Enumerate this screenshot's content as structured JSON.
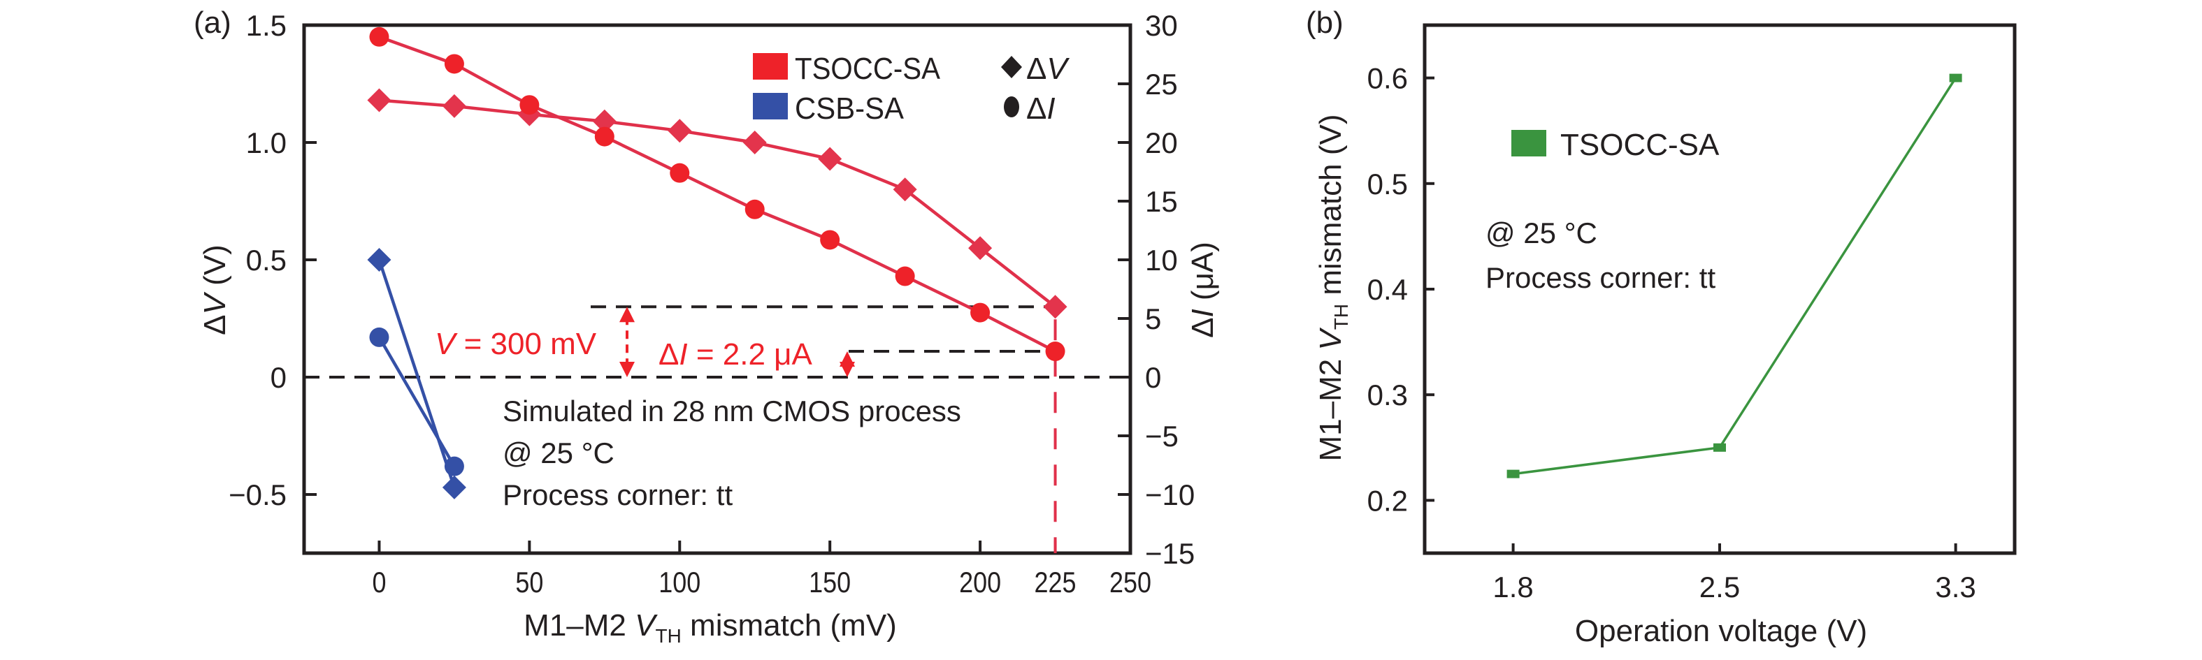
{
  "chart_data": [
    {
      "panel": "(a)",
      "type": "line",
      "xlabel": "M1–M2 V_TH mismatch (mV)",
      "xlabel_parts": {
        "pre": "M1–M2 ",
        "var": "V",
        "sub": "TH",
        "post": " mismatch (mV)"
      },
      "ylabel_left": "ΔV (V)",
      "ylabel_left_parts": {
        "delta": "Δ",
        "var": "V",
        "post": " (V)"
      },
      "ylabel_right": "ΔI (μA)",
      "ylabel_right_parts": {
        "delta": "Δ",
        "var": "I",
        "post": " (μA)"
      },
      "xlim": [
        -25,
        250
      ],
      "ylim_left": [
        -0.75,
        1.5
      ],
      "ylim_right": [
        -15,
        30
      ],
      "xticks": [
        0,
        50,
        100,
        150,
        200,
        225,
        250
      ],
      "xtick_labels": [
        "0",
        "50",
        "100",
        "150",
        "200",
        "225",
        "250"
      ],
      "yticks_left": [
        1.5,
        1.0,
        0.5,
        0,
        -0.5
      ],
      "yticks_left_labels": [
        "1.5",
        "1.0",
        "0.5",
        "0",
        "−0.5"
      ],
      "yticks_right": [
        30,
        25,
        20,
        15,
        10,
        5,
        0,
        -5,
        -10,
        -15
      ],
      "yticks_right_labels": [
        "30",
        "25",
        "20",
        "15",
        "10",
        "5",
        "0",
        "−5",
        "−10",
        "−15"
      ],
      "grid": false,
      "legend_position": "top-right",
      "legend": {
        "series": [
          {
            "label": "TSOCC-SA",
            "color": "#ee2229"
          },
          {
            "label": "CSB-SA",
            "color": "#3450a6"
          }
        ],
        "markers": [
          {
            "symbol": "diamond",
            "label": "ΔV",
            "delta": "Δ",
            "var": "V"
          },
          {
            "symbol": "circle",
            "label": "ΔI",
            "delta": "Δ",
            "var": "I"
          }
        ]
      },
      "series": [
        {
          "name": "TSOCC-SA ΔV",
          "axis": "left",
          "marker": "diamond",
          "color": "#e3344c",
          "x": [
            0,
            25,
            50,
            75,
            100,
            125,
            150,
            175,
            200,
            225
          ],
          "y": [
            1.18,
            1.155,
            1.12,
            1.09,
            1.05,
            1.0,
            0.93,
            0.8,
            0.55,
            0.3
          ]
        },
        {
          "name": "TSOCC-SA ΔI",
          "axis": "right",
          "marker": "circle",
          "color": "#ee2229",
          "x": [
            0,
            25,
            50,
            75,
            100,
            125,
            150,
            175,
            200,
            225
          ],
          "y": [
            29.0,
            26.7,
            23.2,
            20.5,
            17.4,
            14.3,
            11.7,
            8.6,
            5.5,
            2.2
          ]
        },
        {
          "name": "CSB-SA ΔV",
          "axis": "left",
          "marker": "diamond",
          "color": "#3450a6",
          "x": [
            0,
            25
          ],
          "y": [
            0.5,
            -0.47
          ]
        },
        {
          "name": "CSB-SA ΔI",
          "axis": "right",
          "marker": "circle",
          "color": "#3450a6",
          "x": [
            0,
            25
          ],
          "y": [
            3.4,
            -7.6
          ]
        }
      ],
      "reference_lines": {
        "zero": 0,
        "dv_level": 0.3,
        "di_level": 2.2,
        "vertical_x": 225
      },
      "annotations": {
        "dv": {
          "var": "V",
          "rest": " = 300 mV"
        },
        "di": {
          "delta": "Δ",
          "var": "I",
          "rest": " = 2.2 μA"
        },
        "notes": [
          "Simulated in 28 nm CMOS process",
          "@ 25 °C",
          "Process corner: tt"
        ]
      }
    },
    {
      "panel": "(b)",
      "type": "line",
      "xlabel": "Operation voltage (V)",
      "ylabel": "M1–M2 V_TH mismatch (V)",
      "ylabel_parts": {
        "pre": "M1–M2 ",
        "var": "V",
        "sub": "TH",
        "post": " mismatch (V)"
      },
      "xlim": [
        1.5,
        3.5
      ],
      "ylim": [
        0.15,
        0.65
      ],
      "xticks": [
        1.8,
        2.5,
        3.3
      ],
      "xtick_labels": [
        "1.8",
        "2.5",
        "3.3"
      ],
      "yticks": [
        0.6,
        0.5,
        0.4,
        0.3,
        0.2
      ],
      "ytick_labels": [
        "0.6",
        "0.5",
        "0.4",
        "0.3",
        "0.2"
      ],
      "grid": false,
      "legend_position": "top-left",
      "legend": [
        {
          "label": "TSOCC-SA",
          "color": "#3a943f"
        }
      ],
      "series": [
        {
          "name": "TSOCC-SA",
          "marker": "square",
          "color": "#3a943f",
          "x": [
            1.8,
            2.5,
            3.3
          ],
          "y": [
            0.225,
            0.25,
            0.6
          ]
        }
      ],
      "annotations": {
        "notes": [
          "@ 25 °C",
          "Process corner: tt"
        ]
      }
    }
  ]
}
